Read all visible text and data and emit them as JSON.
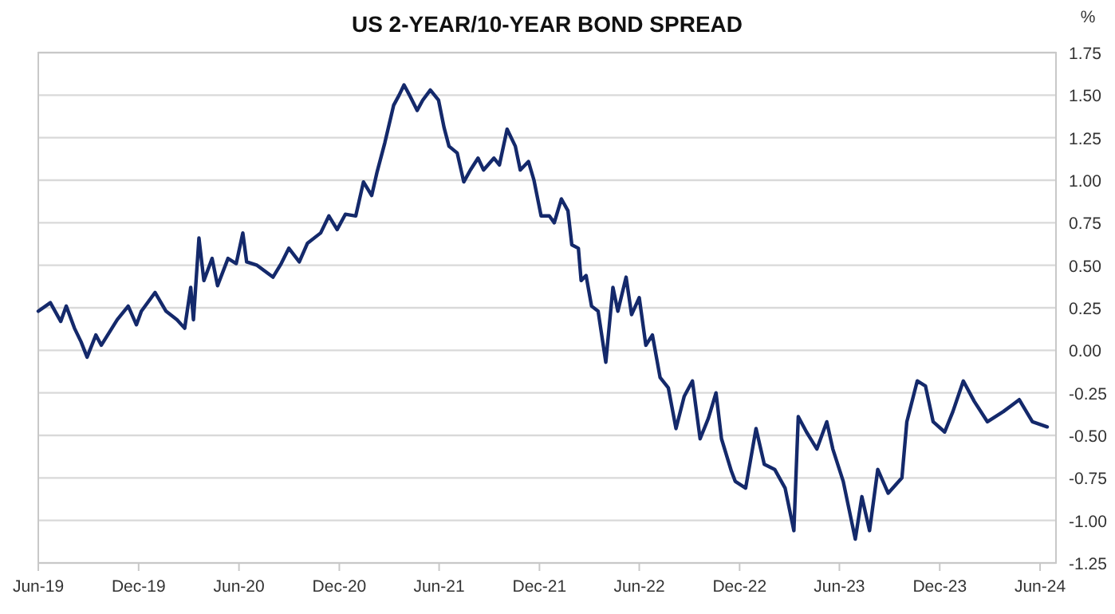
{
  "chart_data": {
    "type": "line",
    "title": "US 2-YEAR/10-YEAR BOND SPREAD",
    "ylabel": "%",
    "x": [
      "2019-06-01",
      "2019-06-23",
      "2019-07-12",
      "2019-07-22",
      "2019-08-06",
      "2019-08-18",
      "2019-08-29",
      "2019-09-14",
      "2019-09-24",
      "2019-10-23",
      "2019-11-12",
      "2019-11-27",
      "2019-12-06",
      "2019-12-31",
      "2020-01-20",
      "2020-02-09",
      "2020-02-23",
      "2020-03-05",
      "2020-03-10",
      "2020-03-20",
      "2020-03-29",
      "2020-04-13",
      "2020-04-23",
      "2020-05-12",
      "2020-05-27",
      "2020-06-08",
      "2020-06-15",
      "2020-07-04",
      "2020-08-02",
      "2020-08-17",
      "2020-08-31",
      "2020-09-19",
      "2020-10-04",
      "2020-10-28",
      "2020-11-12",
      "2020-11-27",
      "2020-12-12",
      "2020-12-31",
      "2021-01-14",
      "2021-01-29",
      "2021-02-08",
      "2021-02-22",
      "2021-03-10",
      "2021-03-20",
      "2021-03-29",
      "2021-04-08",
      "2021-04-22",
      "2021-05-02",
      "2021-05-16",
      "2021-05-31",
      "2021-06-10",
      "2021-06-19",
      "2021-07-04",
      "2021-07-16",
      "2021-07-28",
      "2021-08-11",
      "2021-08-21",
      "2021-09-09",
      "2021-09-19",
      "2021-10-03",
      "2021-10-18",
      "2021-10-27",
      "2021-11-11",
      "2021-11-21",
      "2021-12-04",
      "2021-12-19",
      "2021-12-28",
      "2022-01-10",
      "2022-01-22",
      "2022-01-29",
      "2022-02-10",
      "2022-02-15",
      "2022-02-24",
      "2022-03-06",
      "2022-03-18",
      "2022-04-01",
      "2022-04-14",
      "2022-04-23",
      "2022-05-08",
      "2022-05-18",
      "2022-06-01",
      "2022-06-13",
      "2022-06-25",
      "2022-07-09",
      "2022-07-24",
      "2022-08-07",
      "2022-08-22",
      "2022-09-06",
      "2022-09-20",
      "2022-10-05",
      "2022-10-19",
      "2022-10-29",
      "2022-11-16",
      "2022-11-23",
      "2022-12-12",
      "2022-12-31",
      "2023-01-15",
      "2023-02-03",
      "2023-02-22",
      "2023-03-10",
      "2023-03-18",
      "2023-04-02",
      "2023-04-21",
      "2023-05-09",
      "2023-05-20",
      "2023-06-08",
      "2023-06-30",
      "2023-07-12",
      "2023-07-26",
      "2023-08-10",
      "2023-08-29",
      "2023-09-23",
      "2023-10-02",
      "2023-10-21",
      "2023-11-05",
      "2023-11-19",
      "2023-12-10",
      "2023-12-25",
      "2024-01-13",
      "2024-02-02",
      "2024-02-26",
      "2024-03-26",
      "2024-04-24",
      "2024-05-18",
      "2024-06-14"
    ],
    "series": [
      {
        "color": "#14296b",
        "values": [
          0.23,
          0.28,
          0.17,
          0.26,
          0.13,
          0.05,
          -0.04,
          0.09,
          0.03,
          0.18,
          0.26,
          0.15,
          0.23,
          0.34,
          0.23,
          0.18,
          0.13,
          0.37,
          0.18,
          0.66,
          0.41,
          0.54,
          0.38,
          0.54,
          0.51,
          0.69,
          0.52,
          0.5,
          0.43,
          0.51,
          0.6,
          0.52,
          0.63,
          0.69,
          0.79,
          0.71,
          0.8,
          0.79,
          0.99,
          0.91,
          1.05,
          1.22,
          1.44,
          1.5,
          1.56,
          1.5,
          1.41,
          1.47,
          1.53,
          1.47,
          1.31,
          1.2,
          1.16,
          0.99,
          1.06,
          1.13,
          1.06,
          1.13,
          1.09,
          1.3,
          1.2,
          1.06,
          1.11,
          1.0,
          0.79,
          0.79,
          0.75,
          0.89,
          0.82,
          0.62,
          0.6,
          0.41,
          0.44,
          0.26,
          0.23,
          -0.07,
          0.37,
          0.23,
          0.43,
          0.21,
          0.31,
          0.03,
          0.09,
          -0.16,
          -0.22,
          -0.46,
          -0.27,
          -0.18,
          -0.52,
          -0.4,
          -0.25,
          -0.52,
          -0.71,
          -0.77,
          -0.81,
          -0.46,
          -0.67,
          -0.7,
          -0.81,
          -1.06,
          -0.39,
          -0.48,
          -0.58,
          -0.42,
          -0.58,
          -0.77,
          -1.11,
          -0.86,
          -1.06,
          -0.7,
          -0.84,
          -0.75,
          -0.42,
          -0.18,
          -0.21,
          -0.42,
          -0.48,
          -0.36,
          -0.18,
          -0.3,
          -0.42,
          -0.36,
          -0.29,
          -0.42,
          -0.45
        ]
      }
    ],
    "xlim": [
      "2019-06-01",
      "2024-06-30"
    ],
    "xticks": [
      {
        "value": "2019-06-01",
        "label": "Jun-19"
      },
      {
        "value": "2019-12-01",
        "label": "Dec-19"
      },
      {
        "value": "2020-06-01",
        "label": "Jun-20"
      },
      {
        "value": "2020-12-01",
        "label": "Dec-20"
      },
      {
        "value": "2021-06-01",
        "label": "Jun-21"
      },
      {
        "value": "2021-12-01",
        "label": "Dec-21"
      },
      {
        "value": "2022-06-01",
        "label": "Jun-22"
      },
      {
        "value": "2022-12-01",
        "label": "Dec-22"
      },
      {
        "value": "2023-06-01",
        "label": "Jun-23"
      },
      {
        "value": "2023-12-01",
        "label": "Dec-23"
      },
      {
        "value": "2024-06-01",
        "label": "Jun-24"
      }
    ],
    "ylim": [
      -1.25,
      1.75
    ],
    "yticks": [
      {
        "value": -1.25,
        "label": "-1.25"
      },
      {
        "value": -1,
        "label": "-1.00"
      },
      {
        "value": -0.75,
        "label": "-0.75"
      },
      {
        "value": -0.5,
        "label": "-0.50"
      },
      {
        "value": -0.25,
        "label": "-0.25"
      },
      {
        "value": 0,
        "label": "0.00"
      },
      {
        "value": 0.25,
        "label": "0.25"
      },
      {
        "value": 0.5,
        "label": "0.50"
      },
      {
        "value": 0.75,
        "label": "0.75"
      },
      {
        "value": 1,
        "label": "1.00"
      },
      {
        "value": 1.25,
        "label": "1.25"
      },
      {
        "value": 1.5,
        "label": "1.50"
      },
      {
        "value": 1.75,
        "label": "1.75"
      }
    ],
    "grid": "y",
    "marker": "none",
    "line_style": "solid"
  }
}
